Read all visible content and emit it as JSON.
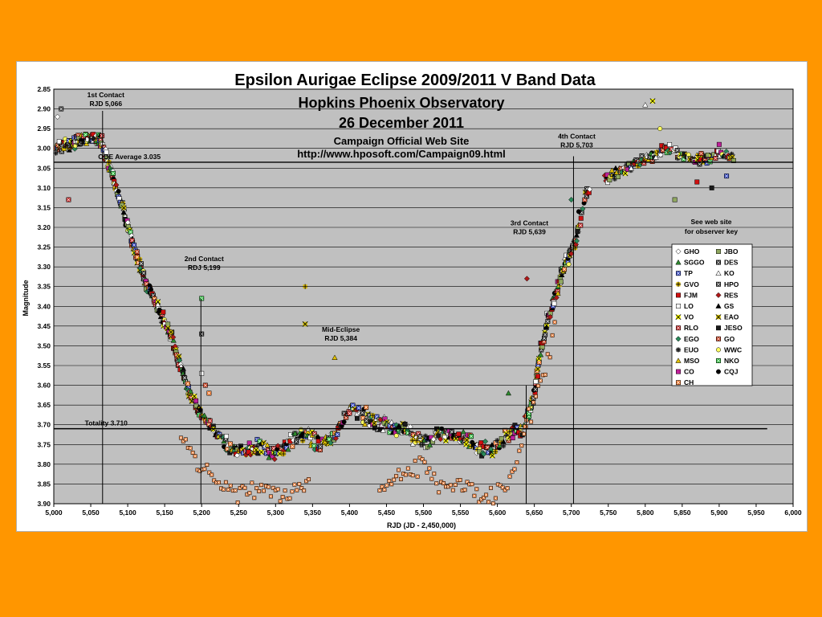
{
  "chart_data": {
    "type": "scatter",
    "title": "Epsilon Aurigae Eclipse 2009/2011 V Band Data",
    "subtitle_lines": [
      "Hopkins Phoenix Observatory",
      "26 December 2011",
      "Campaign Official Web Site",
      "http://www.hposoft.com/Campaign09.html"
    ],
    "xlabel": "RJD (JD - 2,450,000)",
    "ylabel": "Magnitude",
    "xlim": [
      5000,
      6000
    ],
    "ylim": [
      2.85,
      3.9
    ],
    "y_inverted": true,
    "grid": true,
    "x_ticks": [
      "5,000",
      "5,050",
      "5,100",
      "5,150",
      "5,200",
      "5,250",
      "5,300",
      "5,350",
      "5,400",
      "5,450",
      "5,500",
      "5,550",
      "5,600",
      "5,650",
      "5,700",
      "5,750",
      "5,800",
      "5,850",
      "5,900",
      "5,950",
      "6,000"
    ],
    "y_ticks": [
      "2.85",
      "2.90",
      "2.95",
      "3.00",
      "3.05",
      "3.10",
      "3.15",
      "3.20",
      "3.25",
      "3.30",
      "3.35",
      "3.40",
      "3.45",
      "3.50",
      "3.55",
      "3.60",
      "3.65",
      "3.70",
      "3.75",
      "3.80",
      "3.85",
      "3.90"
    ],
    "reference_lines": [
      {
        "label": "OOE Average 3.035",
        "y": 3.035,
        "x_from": 5000,
        "x_to": 6000
      },
      {
        "label": "Totality 3.710",
        "y": 3.71,
        "x_from": 5000,
        "x_to": 5965
      }
    ],
    "annotations": [
      {
        "line1": "1st Contact",
        "line2": "RJD 5,066",
        "x": 5066
      },
      {
        "line1": "2nd Contact",
        "line2": "RDJ 5,199",
        "x": 5199
      },
      {
        "line1": "Mid-Eclipse",
        "line2": "RJD 5,384",
        "x": 5384
      },
      {
        "line1": "3rd Contact",
        "line2": "RJD 5,639",
        "x": 5639
      },
      {
        "line1": "4th Contact",
        "line2": "RJD 5,703",
        "x": 5703
      }
    ],
    "legend_note": [
      "See web site",
      "for observer key"
    ],
    "legend_placement": "right",
    "series": [
      {
        "name": "GHO",
        "color": "#ffffff",
        "marker": "diamond"
      },
      {
        "name": "JBO",
        "color": "#90a860",
        "marker": "square"
      },
      {
        "name": "SGGO",
        "color": "#2e8b2e",
        "marker": "triangle"
      },
      {
        "name": "DES",
        "color": "#222222",
        "marker": "square-x"
      },
      {
        "name": "TP",
        "color": "#2b3fbf",
        "marker": "square-x"
      },
      {
        "name": "KO",
        "color": "#ffffff",
        "marker": "triangle"
      },
      {
        "name": "GVO",
        "color": "#d9b800",
        "marker": "plus"
      },
      {
        "name": "HPO",
        "color": "#333333",
        "marker": "square-x"
      },
      {
        "name": "FJM",
        "color": "#d01010",
        "marker": "square"
      },
      {
        "name": "RES",
        "color": "#b01818",
        "marker": "diamond"
      },
      {
        "name": "LO",
        "color": "#ffffff",
        "marker": "square"
      },
      {
        "name": "GS",
        "color": "#000000",
        "marker": "triangle"
      },
      {
        "name": "VO",
        "color": "#ffff00",
        "marker": "x"
      },
      {
        "name": "EAO",
        "color": "#d4c000",
        "marker": "x"
      },
      {
        "name": "RLO",
        "color": "#c02020",
        "marker": "square-x"
      },
      {
        "name": "JESO",
        "color": "#1a1a1a",
        "marker": "square"
      },
      {
        "name": "EGO",
        "color": "#2a8a5a",
        "marker": "diamond"
      },
      {
        "name": "GO",
        "color": "#c03010",
        "marker": "square-x"
      },
      {
        "name": "EUO",
        "color": "#555555",
        "marker": "plus"
      },
      {
        "name": "WWC",
        "color": "#ffff60",
        "marker": "circle"
      },
      {
        "name": "MSO",
        "color": "#e0c000",
        "marker": "triangle"
      },
      {
        "name": "NKO",
        "color": "#2fbf3f",
        "marker": "square-x"
      },
      {
        "name": "CO",
        "color": "#c0209a",
        "marker": "square"
      },
      {
        "name": "CQJ",
        "color": "#000000",
        "marker": "circle"
      },
      {
        "name": "CH",
        "color": "#f07020",
        "marker": "square-x"
      }
    ],
    "curve": {
      "x": [
        5000,
        5020,
        5040,
        5055,
        5066,
        5080,
        5100,
        5120,
        5140,
        5160,
        5180,
        5199,
        5220,
        5250,
        5280,
        5300,
        5320,
        5340,
        5360,
        5384,
        5400,
        5420,
        5450,
        5480,
        5500,
        5520,
        5550,
        5580,
        5600,
        5620,
        5639,
        5650,
        5660,
        5670,
        5680,
        5690,
        5703,
        5720,
        5750,
        5780,
        5800,
        5830,
        5850,
        5880,
        5900,
        5920
      ],
      "y": [
        3.0,
        2.99,
        2.98,
        2.97,
        2.99,
        3.07,
        3.2,
        3.32,
        3.4,
        3.48,
        3.6,
        3.67,
        3.72,
        3.77,
        3.75,
        3.78,
        3.74,
        3.72,
        3.75,
        3.72,
        3.66,
        3.68,
        3.7,
        3.72,
        3.75,
        3.72,
        3.73,
        3.76,
        3.76,
        3.72,
        3.7,
        3.62,
        3.5,
        3.42,
        3.36,
        3.3,
        3.25,
        3.12,
        3.07,
        3.05,
        3.03,
        3.0,
        3.02,
        3.03,
        3.01,
        3.02
      ]
    },
    "faint_curve": {
      "x": [
        5170,
        5190,
        5210,
        5230,
        5250,
        5280,
        5310,
        5340,
        5440,
        5460,
        5480,
        5500,
        5520,
        5540,
        5560,
        5580,
        5600,
        5615,
        5625,
        5640,
        5660,
        5680
      ],
      "y": [
        3.72,
        3.78,
        3.82,
        3.85,
        3.87,
        3.86,
        3.88,
        3.85,
        3.86,
        3.83,
        3.82,
        3.8,
        3.84,
        3.86,
        3.85,
        3.88,
        3.87,
        3.84,
        3.8,
        3.7,
        3.58,
        3.45
      ]
    },
    "outliers": [
      {
        "x": 5005,
        "y": 2.92
      },
      {
        "x": 5010,
        "y": 2.9
      },
      {
        "x": 5020,
        "y": 3.13
      },
      {
        "x": 5200,
        "y": 3.38
      },
      {
        "x": 5200,
        "y": 3.47
      },
      {
        "x": 5200,
        "y": 3.57
      },
      {
        "x": 5205,
        "y": 3.6
      },
      {
        "x": 5210,
        "y": 3.62
      },
      {
        "x": 5340,
        "y": 3.35
      },
      {
        "x": 5340,
        "y": 3.445
      },
      {
        "x": 5380,
        "y": 3.53
      },
      {
        "x": 5615,
        "y": 3.62
      },
      {
        "x": 5640,
        "y": 3.33
      },
      {
        "x": 5700,
        "y": 3.13
      },
      {
        "x": 5710,
        "y": 3.16
      },
      {
        "x": 5800,
        "y": 2.89
      },
      {
        "x": 5810,
        "y": 2.88
      },
      {
        "x": 5820,
        "y": 2.95
      },
      {
        "x": 5840,
        "y": 3.13
      },
      {
        "x": 5870,
        "y": 3.085
      },
      {
        "x": 5890,
        "y": 3.1
      },
      {
        "x": 5900,
        "y": 2.99
      },
      {
        "x": 5910,
        "y": 3.07
      },
      {
        "x": 5760,
        "y": 3.05
      }
    ]
  }
}
